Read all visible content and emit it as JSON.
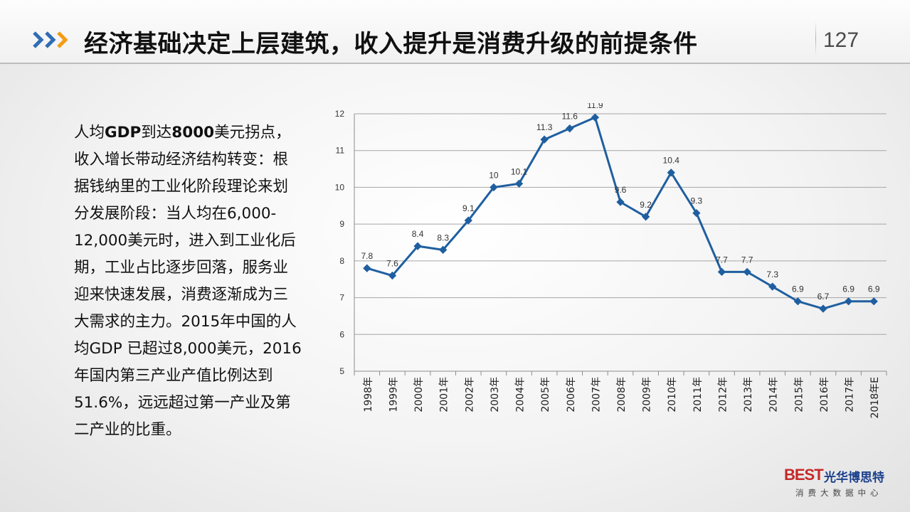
{
  "header": {
    "title": "经济基础决定上层建筑，收入提升是消费升级的前提条件",
    "page_number": "127",
    "accent_color": "#2f6db5"
  },
  "body": {
    "lines": [
      {
        "parts": [
          {
            "t": "人均",
            "b": false
          },
          {
            "t": "GDP",
            "b": true
          },
          {
            "t": "到达",
            "b": false
          },
          {
            "t": "8000",
            "b": true
          },
          {
            "t": "美元拐点，",
            "b": false
          }
        ]
      },
      {
        "parts": [
          {
            "t": "收入增长带动经济结构转变：根",
            "b": false
          }
        ]
      },
      {
        "parts": [
          {
            "t": "据钱纳里的工业化阶段理论来划",
            "b": false
          }
        ]
      },
      {
        "parts": [
          {
            "t": "分发展阶段：当人均在6,000-",
            "b": false
          }
        ]
      },
      {
        "parts": [
          {
            "t": "12,000美元时，进入到工业化后",
            "b": false
          }
        ]
      },
      {
        "parts": [
          {
            "t": "期，工业占比逐步回落，服务业",
            "b": false
          }
        ]
      },
      {
        "parts": [
          {
            "t": "迎来快速发展，消费逐渐成为三",
            "b": false
          }
        ]
      },
      {
        "parts": [
          {
            "t": "大需求的主力。2015年中国的人",
            "b": false
          }
        ]
      },
      {
        "parts": [
          {
            "t": "均GDP 已超过8,000美元，2016",
            "b": false
          }
        ]
      },
      {
        "parts": [
          {
            "t": "年国内第三产业产值比例达到",
            "b": false
          }
        ]
      },
      {
        "parts": [
          {
            "t": "51.6%，远远超过第一产业及第",
            "b": false
          }
        ]
      },
      {
        "parts": [
          {
            "t": "二产业的比重。",
            "b": false
          }
        ]
      }
    ]
  },
  "chart_data": {
    "type": "line",
    "categories": [
      "1998年",
      "1999年",
      "2000年",
      "2001年",
      "2002年",
      "2003年",
      "2004年",
      "2005年",
      "2006年",
      "2007年",
      "2008年",
      "2009年",
      "2010年",
      "2011年",
      "2012年",
      "2013年",
      "2014年",
      "2015年",
      "2016年",
      "2017年",
      "2018年E"
    ],
    "series": [
      {
        "values": [
          7.8,
          7.6,
          8.4,
          8.3,
          9.1,
          10,
          10.1,
          11.3,
          11.6,
          11.9,
          9.6,
          9.2,
          10.4,
          9.3,
          7.7,
          7.7,
          7.3,
          6.9,
          6.7,
          6.9,
          6.9
        ],
        "color": "#1f5fa0"
      }
    ],
    "ylim": [
      5,
      12
    ],
    "yticks": [
      5,
      6,
      7,
      8,
      9,
      10,
      11,
      12
    ],
    "xlabel": "",
    "ylabel": "",
    "grid": true,
    "show_data_labels": true
  },
  "logo": {
    "mark": "BEST",
    "cn": "光华博思特",
    "sub": "消费大数据中心"
  }
}
